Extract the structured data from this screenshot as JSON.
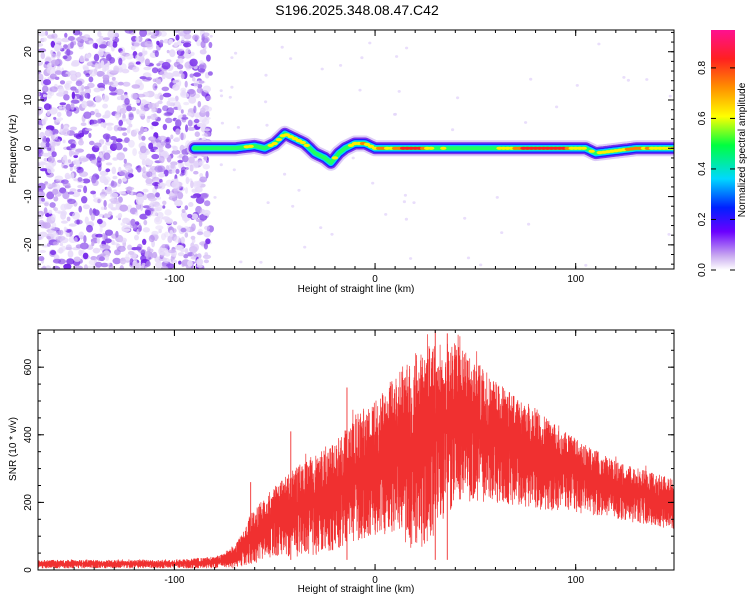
{
  "chart_data": [
    {
      "type": "heatmap",
      "title": "S196.2025.348.08.47.C42",
      "xlabel": "Height of straight line (km)",
      "ylabel": "Frequency (Hz)",
      "xlim": [
        -168,
        149
      ],
      "ylim": [
        -25,
        24.5
      ],
      "xticks": [
        -100,
        0,
        100
      ],
      "xtick_labels": [
        "-100",
        "0",
        "100"
      ],
      "yticks": [
        -20,
        -10,
        0,
        10,
        20
      ],
      "ytick_labels": [
        "-20",
        "-10",
        "0",
        "10",
        "20"
      ],
      "colorbar": {
        "label": "Normalized spectral amplitude",
        "range": [
          0,
          0.95
        ],
        "ticks": [
          0,
          0.2,
          0.4,
          0.6,
          0.8
        ],
        "tick_labels": [
          "0.0",
          "0.2",
          "0.4",
          "0.6",
          "0.8"
        ],
        "colormap": "rainbow"
      },
      "noise_region_x": [
        -168,
        -82
      ],
      "ridge": {
        "x": [
          -90,
          -80,
          -70,
          -60,
          -55,
          -50,
          -45,
          -40,
          -35,
          -30,
          -25,
          -22,
          -18,
          -15,
          -10,
          -5,
          0,
          10,
          20,
          30,
          40,
          50,
          60,
          70,
          80,
          90,
          100,
          105,
          110,
          120,
          130,
          140,
          149
        ],
        "freq_hz": [
          0,
          0,
          0,
          0.5,
          0,
          1,
          3,
          2,
          1,
          -1,
          -2,
          -3,
          -1,
          0,
          1,
          1,
          0,
          0,
          0,
          0,
          0,
          0,
          0,
          0,
          0,
          0,
          0,
          0,
          -1,
          -0.5,
          0,
          0,
          0
        ],
        "amplitude": [
          0.3,
          0.5,
          0.6,
          0.6,
          0.5,
          0.6,
          0.7,
          0.7,
          0.6,
          0.5,
          0.5,
          0.6,
          0.6,
          0.5,
          0.7,
          0.8,
          0.7,
          0.8,
          0.9,
          0.6,
          0.5,
          0.5,
          0.6,
          0.8,
          0.9,
          0.9,
          0.7,
          0.6,
          0.6,
          0.7,
          0.8,
          0.7,
          0.6
        ]
      }
    },
    {
      "type": "line",
      "xlabel": "Height of straight line (km)",
      "ylabel": "SNR (10 * v/v)",
      "xlim": [
        -168,
        149
      ],
      "ylim": [
        0,
        710
      ],
      "xticks": [
        -100,
        0,
        100
      ],
      "xtick_labels": [
        "-100",
        "0",
        "100"
      ],
      "yticks": [
        0,
        200,
        400,
        600
      ],
      "ytick_labels": [
        "0",
        "200",
        "400",
        "600"
      ],
      "color": "#f03030",
      "envelope": {
        "x": [
          -168,
          -100,
          -80,
          -70,
          -60,
          -50,
          -40,
          -30,
          -20,
          -10,
          0,
          10,
          20,
          30,
          40,
          50,
          60,
          80,
          100,
          120,
          149
        ],
        "upper": [
          30,
          30,
          40,
          70,
          180,
          250,
          300,
          350,
          380,
          460,
          500,
          580,
          640,
          680,
          670,
          620,
          560,
          480,
          390,
          320,
          270
        ],
        "lower": [
          5,
          5,
          5,
          5,
          20,
          40,
          40,
          40,
          60,
          80,
          100,
          100,
          50,
          100,
          200,
          200,
          200,
          180,
          170,
          150,
          120
        ]
      },
      "spikes": [
        {
          "x": -62,
          "y": 260
        },
        {
          "x": -42,
          "y": 410
        },
        {
          "x": -14,
          "y": 540
        },
        {
          "x": 30,
          "y": 710
        },
        {
          "x": 36,
          "y": 700
        }
      ]
    }
  ]
}
